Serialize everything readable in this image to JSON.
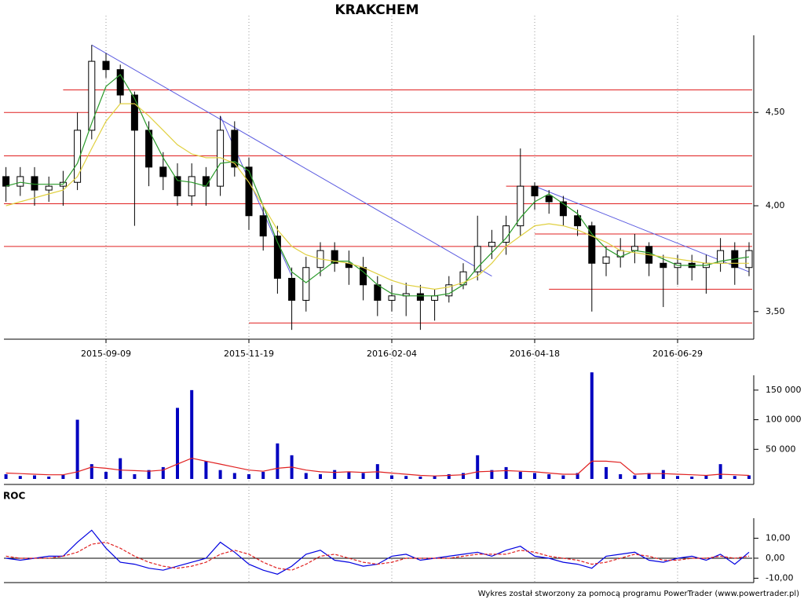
{
  "chart_data": [
    {
      "type": "candlestick",
      "title": "KRAKCHEM",
      "categories": [
        null,
        null,
        null,
        null,
        null,
        null,
        null,
        "2015-09-09",
        null,
        null,
        null,
        null,
        null,
        null,
        null,
        null,
        null,
        "2015-11-19",
        null,
        null,
        null,
        null,
        null,
        null,
        null,
        null,
        null,
        "2016-02-04",
        null,
        null,
        null,
        null,
        null,
        null,
        null,
        null,
        null,
        "2016-04-18",
        null,
        null,
        null,
        null,
        null,
        null,
        null,
        null,
        null,
        "2016-06-29",
        null,
        null,
        null,
        null,
        null
      ],
      "open": [
        4.15,
        4.1,
        4.15,
        4.08,
        4.1,
        4.12,
        4.4,
        4.8,
        4.75,
        4.6,
        4.4,
        4.2,
        4.15,
        4.05,
        4.15,
        4.1,
        4.4,
        4.2,
        3.95,
        3.85,
        3.65,
        3.55,
        3.7,
        3.78,
        3.72,
        3.7,
        3.62,
        3.55,
        3.57,
        3.58,
        3.55,
        3.57,
        3.62,
        3.68,
        3.8,
        3.82,
        3.9,
        4.1,
        4.05,
        4.02,
        3.95,
        3.9,
        3.72,
        3.75,
        3.78,
        3.8,
        3.72,
        3.7,
        3.72,
        3.7,
        3.72,
        3.78,
        3.7
      ],
      "high": [
        4.2,
        4.2,
        4.2,
        4.15,
        4.18,
        4.5,
        4.9,
        4.85,
        4.78,
        4.62,
        4.45,
        4.28,
        4.22,
        4.22,
        4.2,
        4.48,
        4.45,
        4.25,
        4.0,
        3.9,
        3.7,
        3.75,
        3.82,
        3.82,
        3.78,
        3.75,
        3.66,
        3.62,
        3.63,
        3.62,
        3.6,
        3.66,
        3.72,
        3.95,
        3.88,
        3.95,
        4.3,
        4.12,
        4.08,
        4.05,
        3.98,
        3.92,
        3.8,
        3.84,
        3.86,
        3.82,
        3.76,
        3.76,
        3.76,
        3.76,
        3.84,
        3.82,
        3.82
      ],
      "low": [
        4.02,
        4.05,
        4.0,
        4.02,
        4.0,
        4.08,
        4.35,
        4.7,
        4.55,
        3.9,
        4.1,
        4.08,
        4.0,
        4.0,
        4.0,
        4.05,
        4.15,
        3.88,
        3.78,
        3.58,
        3.42,
        3.5,
        3.66,
        3.68,
        3.62,
        3.55,
        3.48,
        3.5,
        3.48,
        3.42,
        3.46,
        3.54,
        3.6,
        3.64,
        3.74,
        3.76,
        3.85,
        3.98,
        3.96,
        3.9,
        3.85,
        3.5,
        3.66,
        3.7,
        3.72,
        3.66,
        3.52,
        3.62,
        3.64,
        3.58,
        3.68,
        3.62,
        3.66
      ],
      "close": [
        4.1,
        4.15,
        4.08,
        4.1,
        4.12,
        4.4,
        4.8,
        4.75,
        4.6,
        4.4,
        4.2,
        4.15,
        4.05,
        4.15,
        4.1,
        4.4,
        4.2,
        3.95,
        3.85,
        3.65,
        3.55,
        3.7,
        3.78,
        3.72,
        3.7,
        3.62,
        3.55,
        3.57,
        3.58,
        3.55,
        3.57,
        3.62,
        3.68,
        3.8,
        3.82,
        3.9,
        4.1,
        4.05,
        4.02,
        3.95,
        3.9,
        3.72,
        3.75,
        3.78,
        3.8,
        3.72,
        3.7,
        3.72,
        3.7,
        3.72,
        3.78,
        3.7,
        3.78
      ],
      "series": [
        {
          "color": "#2a9a2a",
          "values": [
            4.1,
            4.12,
            4.11,
            4.11,
            4.11,
            4.22,
            4.44,
            4.65,
            4.72,
            4.58,
            4.4,
            4.25,
            4.13,
            4.12,
            4.1,
            4.22,
            4.23,
            4.18,
            4.0,
            3.82,
            3.68,
            3.63,
            3.68,
            3.73,
            3.73,
            3.68,
            3.62,
            3.58,
            3.57,
            3.57,
            3.57,
            3.58,
            3.62,
            3.7,
            3.77,
            3.84,
            3.94,
            4.02,
            4.06,
            4.01,
            3.96,
            3.86,
            3.79,
            3.75,
            3.78,
            3.77,
            3.74,
            3.71,
            3.71,
            3.71,
            3.73,
            3.74,
            3.75
          ]
        },
        {
          "color": "#e0d040",
          "values": [
            4.0,
            4.02,
            4.04,
            4.06,
            4.08,
            4.15,
            4.3,
            4.45,
            4.55,
            4.55,
            4.48,
            4.4,
            4.32,
            4.27,
            4.25,
            4.25,
            4.22,
            4.12,
            4.0,
            3.88,
            3.8,
            3.76,
            3.74,
            3.73,
            3.72,
            3.7,
            3.67,
            3.64,
            3.62,
            3.61,
            3.6,
            3.61,
            3.63,
            3.66,
            3.72,
            3.8,
            3.85,
            3.9,
            3.91,
            3.9,
            3.88,
            3.85,
            3.82,
            3.78,
            3.77,
            3.76,
            3.75,
            3.74,
            3.73,
            3.72,
            3.72,
            3.72,
            3.72
          ]
        }
      ],
      "levels": [
        {
          "value": 4.63,
          "start": 4
        },
        4.5,
        4.26,
        4.01,
        3.8,
        {
          "value": 3.45,
          "start": 17
        },
        {
          "value": 4.1,
          "start": 35
        },
        {
          "value": 3.86,
          "start": 37
        },
        {
          "value": 3.6,
          "start": 38
        }
      ],
      "trendlines": [
        {
          "start": [
            6,
            4.9
          ],
          "end": [
            34,
            3.66
          ]
        },
        {
          "start": [
            15,
            4.48
          ],
          "end": [
            20,
            3.66
          ]
        },
        {
          "start": [
            37,
            4.1
          ],
          "end": [
            52,
            3.68
          ]
        }
      ],
      "log_scale": true,
      "ylim": [
        3.38,
        4.96
      ],
      "yticks": [
        {
          "value": 3.5,
          "label": "3,50"
        },
        {
          "value": 4.0,
          "label": "4,00"
        },
        {
          "value": 4.5,
          "label": "4,50"
        }
      ],
      "grid": true
    },
    {
      "type": "bar",
      "color": "#0000c0",
      "values": [
        8000,
        5000,
        6000,
        4000,
        7000,
        100000,
        25000,
        12000,
        35000,
        8000,
        15000,
        20000,
        120000,
        150000,
        30000,
        15000,
        10000,
        8000,
        12000,
        60000,
        40000,
        10000,
        8000,
        15000,
        12000,
        10000,
        25000,
        6000,
        5000,
        4000,
        5000,
        8000,
        10000,
        40000,
        15000,
        20000,
        12000,
        10000,
        8000,
        6000,
        10000,
        180000,
        20000,
        8000,
        6000,
        10000,
        15000,
        5000,
        4000,
        6000,
        25000,
        5000,
        6000
      ],
      "series": [
        {
          "color": "#e02020",
          "values": [
            10000,
            9000,
            8000,
            7000,
            7000,
            12000,
            20000,
            18000,
            15000,
            14000,
            13000,
            15000,
            25000,
            35000,
            30000,
            25000,
            20000,
            15000,
            13000,
            18000,
            20000,
            15000,
            12000,
            11000,
            12000,
            11000,
            12000,
            10000,
            8000,
            6000,
            5000,
            6000,
            7000,
            12000,
            13000,
            14000,
            13000,
            12000,
            10000,
            8000,
            8000,
            30000,
            30000,
            28000,
            8000,
            9000,
            9000,
            8000,
            7000,
            6000,
            8000,
            7000,
            6000
          ]
        }
      ],
      "ylim": [
        0,
        175000
      ],
      "yticks": [
        {
          "value": 50000,
          "label": "50 000"
        },
        {
          "value": 100000,
          "label": "100 000"
        },
        {
          "value": 150000,
          "label": "150 000"
        }
      ]
    },
    {
      "type": "line",
      "title": "ROC",
      "series": [
        {
          "color": "#0000e0",
          "values": [
            0,
            -1,
            0,
            1,
            1,
            8,
            14,
            5,
            -2,
            -3,
            -5,
            -6,
            -4,
            -2,
            0,
            8,
            3,
            -3,
            -6,
            -8,
            -4,
            2,
            4,
            -1,
            -2,
            -4,
            -3,
            1,
            2,
            -1,
            0,
            1,
            2,
            3,
            1,
            4,
            6,
            1,
            0,
            -2,
            -3,
            -5,
            1,
            2,
            3,
            -1,
            -2,
            0,
            1,
            -1,
            2,
            -3,
            3
          ]
        },
        {
          "color": "#e02020",
          "dashed": true,
          "values": [
            1,
            0,
            0,
            0,
            1,
            3,
            7,
            8,
            5,
            1,
            -2,
            -4,
            -5,
            -4,
            -2,
            2,
            4,
            2,
            -2,
            -5,
            -6,
            -3,
            1,
            2,
            0,
            -2,
            -3,
            -2,
            0,
            0,
            0,
            0,
            1,
            2,
            2,
            2,
            4,
            3,
            1,
            0,
            -1,
            -3,
            -2,
            0,
            2,
            1,
            -1,
            -1,
            0,
            0,
            1,
            0,
            1
          ]
        }
      ],
      "ylim": [
        -11.4,
        20
      ],
      "yticks": [
        {
          "value": -10,
          "label": "-10,00"
        },
        {
          "value": 0,
          "label": "0,00"
        },
        {
          "value": 10,
          "label": "10,00"
        }
      ]
    }
  ],
  "footer": "Wykres został stworzony za pomocą programu PowerTrader (www.powertrader.pl)"
}
